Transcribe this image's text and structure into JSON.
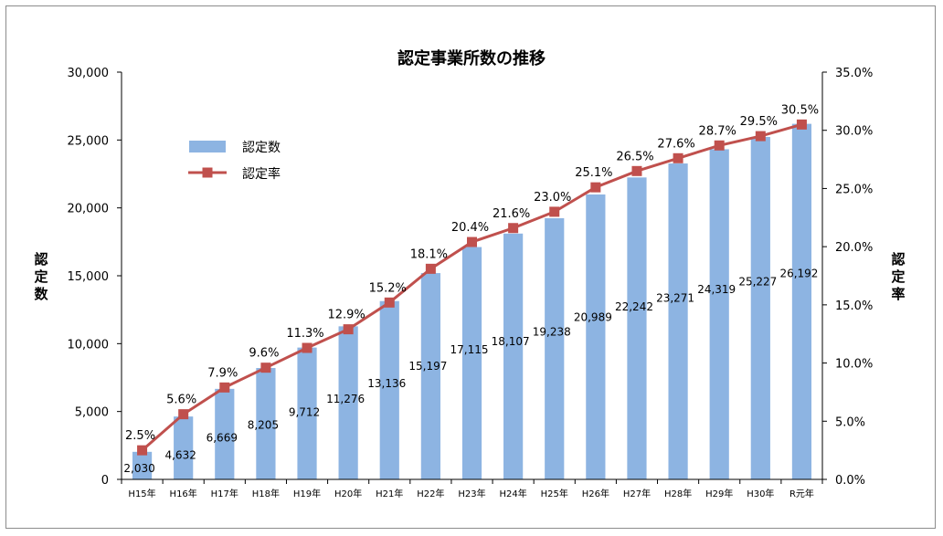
{
  "chart_data": {
    "type": "bar",
    "title": "認定事業所数の推移",
    "ylabel": "認定数",
    "y2label": "認定率",
    "categories": [
      "H15年",
      "H16年",
      "H17年",
      "H18年",
      "H19年",
      "H20年",
      "H21年",
      "H22年",
      "H23年",
      "H24年",
      "H25年",
      "H26年",
      "H27年",
      "H28年",
      "H29年",
      "H30年",
      "R元年"
    ],
    "series": [
      {
        "name": "認定数",
        "type": "bar",
        "axis": "left",
        "values": [
          2030,
          4632,
          6669,
          8205,
          9712,
          11276,
          13136,
          15197,
          17115,
          18107,
          19238,
          20989,
          22242,
          23271,
          24319,
          25227,
          26192
        ],
        "labels": [
          "2,030",
          "4,632",
          "6,669",
          "8,205",
          "9,712",
          "11,276",
          "13,136",
          "15,197",
          "17,115",
          "18,107",
          "19,238",
          "20,989",
          "22,242",
          "23,271",
          "24,319",
          "25,227",
          "26,192"
        ],
        "color": "#8db4e2"
      },
      {
        "name": "認定率",
        "type": "line",
        "axis": "right",
        "values": [
          2.5,
          5.6,
          7.9,
          9.6,
          11.3,
          12.9,
          15.2,
          18.1,
          20.4,
          21.6,
          23.0,
          25.1,
          26.5,
          27.6,
          28.7,
          29.5,
          30.5
        ],
        "labels": [
          "2.5%",
          "5.6%",
          "7.9%",
          "9.6%",
          "11.3%",
          "12.9%",
          "15.2%",
          "18.1%",
          "20.4%",
          "21.6%",
          "23.0%",
          "25.1%",
          "26.5%",
          "27.6%",
          "28.7%",
          "29.5%",
          "30.5%"
        ],
        "color": "#c0504d"
      }
    ],
    "ylim": [
      0,
      30000
    ],
    "y2lim": [
      0,
      35
    ],
    "yticks": [
      "0",
      "5,000",
      "10,000",
      "15,000",
      "20,000",
      "25,000",
      "30,000"
    ],
    "y2ticks": [
      "0.0%",
      "5.0%",
      "10.0%",
      "15.0%",
      "20.0%",
      "25.0%",
      "30.0%",
      "35.0%"
    ],
    "grid": false,
    "legend_position": "top-left"
  }
}
